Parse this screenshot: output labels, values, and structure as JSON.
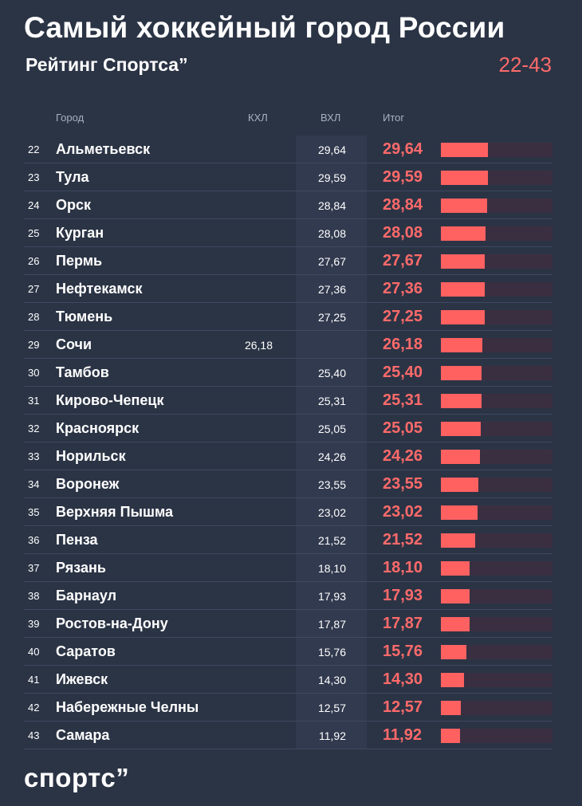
{
  "header": {
    "title": "Самый хоккейный город России",
    "subtitle": "Рейтинг Спортса”",
    "range": "22-43"
  },
  "colors": {
    "background": "#2b3445",
    "accent": "#ff6a6a",
    "bar": "#ff6161"
  },
  "brand": {
    "logo": "спортс”"
  },
  "chart_data": {
    "type": "bar",
    "title": "Самый хоккейный город России",
    "subtitle": "Рейтинг Спортса”",
    "columns": [
      "Город",
      "КХЛ",
      "ВХЛ",
      "Итог"
    ],
    "xlim": [
      0,
      100
    ],
    "rows": [
      {
        "rank": "22",
        "city": "Альметьевск",
        "khl": "",
        "vhl": "29,64",
        "total": "29,64",
        "value": 29.64
      },
      {
        "rank": "23",
        "city": "Тула",
        "khl": "",
        "vhl": "29,59",
        "total": "29,59",
        "value": 29.59
      },
      {
        "rank": "24",
        "city": "Орск",
        "khl": "",
        "vhl": "28,84",
        "total": "28,84",
        "value": 28.84
      },
      {
        "rank": "25",
        "city": "Курган",
        "khl": "",
        "vhl": "28,08",
        "total": "28,08",
        "value": 28.08
      },
      {
        "rank": "26",
        "city": "Пермь",
        "khl": "",
        "vhl": "27,67",
        "total": "27,67",
        "value": 27.67
      },
      {
        "rank": "27",
        "city": "Нефтекамск",
        "khl": "",
        "vhl": "27,36",
        "total": "27,36",
        "value": 27.36
      },
      {
        "rank": "28",
        "city": "Тюмень",
        "khl": "",
        "vhl": "27,25",
        "total": "27,25",
        "value": 27.25
      },
      {
        "rank": "29",
        "city": "Сочи",
        "khl": "26,18",
        "vhl": "",
        "total": "26,18",
        "value": 26.18
      },
      {
        "rank": "30",
        "city": "Тамбов",
        "khl": "",
        "vhl": "25,40",
        "total": "25,40",
        "value": 25.4
      },
      {
        "rank": "31",
        "city": "Кирово-Чепецк",
        "khl": "",
        "vhl": "25,31",
        "total": "25,31",
        "value": 25.31
      },
      {
        "rank": "32",
        "city": "Красноярск",
        "khl": "",
        "vhl": "25,05",
        "total": "25,05",
        "value": 25.05
      },
      {
        "rank": "33",
        "city": "Норильск",
        "khl": "",
        "vhl": "24,26",
        "total": "24,26",
        "value": 24.26
      },
      {
        "rank": "34",
        "city": "Воронеж",
        "khl": "",
        "vhl": "23,55",
        "total": "23,55",
        "value": 23.55
      },
      {
        "rank": "35",
        "city": "Верхняя Пышма",
        "khl": "",
        "vhl": "23,02",
        "total": "23,02",
        "value": 23.02
      },
      {
        "rank": "36",
        "city": "Пенза",
        "khl": "",
        "vhl": "21,52",
        "total": "21,52",
        "value": 21.52
      },
      {
        "rank": "37",
        "city": "Рязань",
        "khl": "",
        "vhl": "18,10",
        "total": "18,10",
        "value": 18.1
      },
      {
        "rank": "38",
        "city": "Барнаул",
        "khl": "",
        "vhl": "17,93",
        "total": "17,93",
        "value": 17.93
      },
      {
        "rank": "39",
        "city": "Ростов-на-Дону",
        "khl": "",
        "vhl": "17,87",
        "total": "17,87",
        "value": 17.87
      },
      {
        "rank": "40",
        "city": "Саратов",
        "khl": "",
        "vhl": "15,76",
        "total": "15,76",
        "value": 15.76
      },
      {
        "rank": "41",
        "city": "Ижевск",
        "khl": "",
        "vhl": "14,30",
        "total": "14,30",
        "value": 14.3
      },
      {
        "rank": "42",
        "city": "Набережные Челны",
        "khl": "",
        "vhl": "12,57",
        "total": "12,57",
        "value": 12.57
      },
      {
        "rank": "43",
        "city": "Самара",
        "khl": "",
        "vhl": "11,92",
        "total": "11,92",
        "value": 11.92
      }
    ]
  }
}
